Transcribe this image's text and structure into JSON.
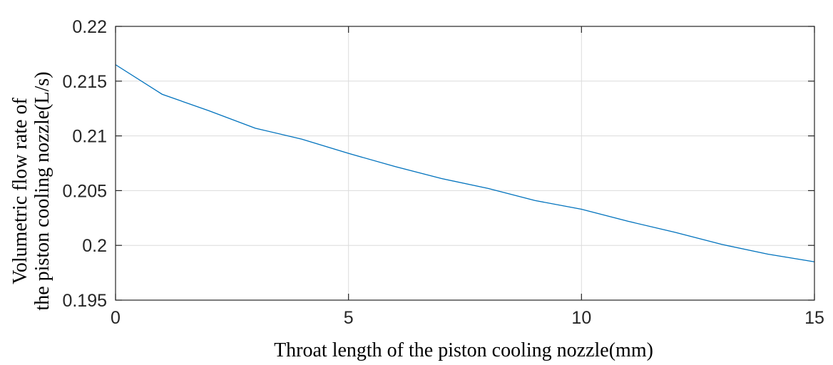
{
  "chart_data": {
    "type": "line",
    "title": "",
    "xlabel": "Throat length of the piston cooling nozzle(mm)",
    "ylabel": [
      "Volumetric flow rate of",
      "the piston cooling nozzle(L/s)"
    ],
    "xlim": [
      0,
      15
    ],
    "ylim": [
      0.195,
      0.22
    ],
    "xticks": [
      0,
      5,
      10,
      15
    ],
    "xtick_labels": [
      "0",
      "5",
      "10",
      "15"
    ],
    "yticks": [
      0.195,
      0.2,
      0.205,
      0.21,
      0.215,
      0.22
    ],
    "ytick_labels": [
      "0.195",
      "0.2",
      "0.205",
      "0.21",
      "0.215",
      "0.22"
    ],
    "grid": true,
    "series": [
      {
        "color": "#0072BD",
        "x": [
          0,
          1,
          2,
          3,
          4,
          5,
          6,
          7,
          8,
          9,
          10,
          11,
          12,
          13,
          14,
          15
        ],
        "y": [
          0.2165,
          0.2138,
          0.2123,
          0.2107,
          0.2097,
          0.2084,
          0.2072,
          0.2061,
          0.2052,
          0.2041,
          0.2033,
          0.2022,
          0.2012,
          0.2001,
          0.1992,
          0.1985
        ]
      }
    ]
  }
}
